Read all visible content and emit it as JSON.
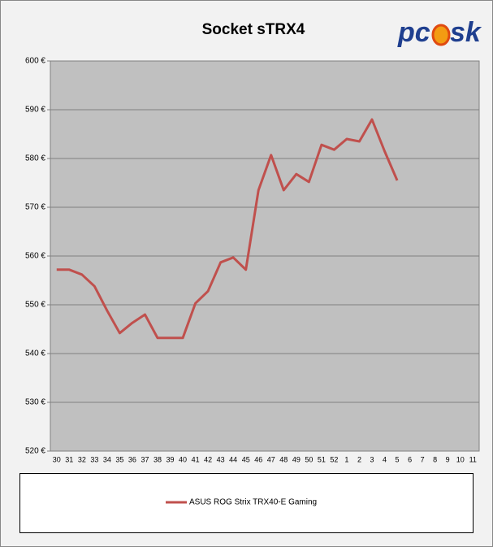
{
  "chart_data": {
    "type": "line",
    "title": "Socket sTRX4",
    "logo": [
      "pc",
      "sk"
    ],
    "categories": [
      "30",
      "31",
      "32",
      "33",
      "34",
      "35",
      "36",
      "37",
      "38",
      "39",
      "40",
      "41",
      "42",
      "43",
      "44",
      "45",
      "46",
      "47",
      "48",
      "49",
      "50",
      "51",
      "52",
      "1",
      "2",
      "3",
      "4",
      "5",
      "6",
      "7",
      "8",
      "9",
      "10",
      "11"
    ],
    "series": [
      {
        "name": "ASUS ROG Strix TRX40-E Gaming",
        "color": "#c0504d",
        "values": [
          557.2,
          557.2,
          556.2,
          553.8,
          548.8,
          544.2,
          546.3,
          548,
          543.2,
          543.2,
          543.2,
          550.3,
          552.8,
          558.7,
          559.7,
          557.2,
          573.5,
          580.7,
          573.5,
          576.8,
          575.2,
          582.8,
          581.8,
          584,
          583.5,
          588,
          581.5,
          575.5,
          null,
          null,
          null,
          null,
          null,
          null
        ]
      }
    ],
    "ylim": [
      520,
      600
    ],
    "yticks": [
      {
        "value": 520,
        "label": "520 €"
      },
      {
        "value": 530,
        "label": "530 €"
      },
      {
        "value": 540,
        "label": "540 €"
      },
      {
        "value": 550,
        "label": "550 €"
      },
      {
        "value": 560,
        "label": "560 €"
      },
      {
        "value": 570,
        "label": "570 €"
      },
      {
        "value": 580,
        "label": "580 €"
      },
      {
        "value": 590,
        "label": "590 €"
      },
      {
        "value": 600,
        "label": "600 €"
      }
    ],
    "grid": true
  }
}
